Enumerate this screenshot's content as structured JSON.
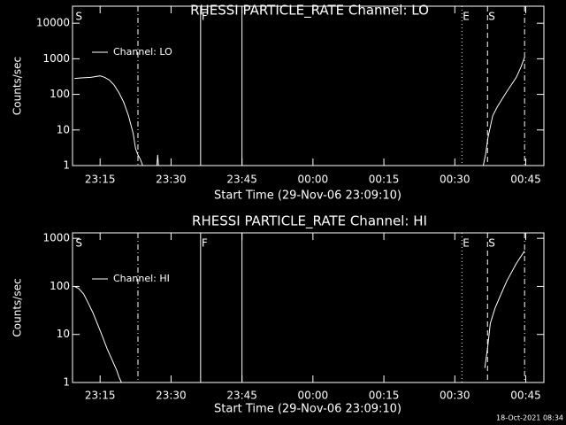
{
  "chart_data": [
    {
      "type": "line",
      "title": "RHESSI PARTICLE_RATE Channel: LO",
      "x_label": "Start Time (29-Nov-06 23:09:10)",
      "y_label": "Counts/sec",
      "log_y": true,
      "legend": "upper left",
      "xlim": [
        "23:09:10",
        "00:48:50"
      ],
      "xticks": [
        "23:15",
        "23:30",
        "23:45",
        "00:00",
        "00:15",
        "00:30",
        "00:45"
      ],
      "ylim": [
        1,
        30000
      ],
      "yticks": [
        1,
        10,
        100,
        1000,
        10000
      ],
      "markers": [
        {
          "x": "23:09:36",
          "label": "S",
          "style": "none"
        },
        {
          "x": "23:23:00",
          "style": "dashdot"
        },
        {
          "x": "23:36:15",
          "label": "F",
          "style": "solid"
        },
        {
          "x": "23:45:00",
          "style": "solid"
        },
        {
          "x": "00:31:30",
          "label": "E",
          "style": "dotted"
        },
        {
          "x": "00:36:55",
          "label": "S",
          "style": "dashed"
        },
        {
          "x": "00:44:45",
          "style": "dashdot"
        }
      ],
      "series": [
        {
          "name": "Channel: LO",
          "color": "#ffffff",
          "x": [
            "23:09:36",
            "23:11:00",
            "23:13:00",
            "23:15:00",
            "23:16:00",
            "23:17:00",
            "23:18:00",
            "23:19:00",
            "23:20:00",
            "23:21:00",
            "23:22:00",
            "23:22:30",
            "23:23:00",
            "23:23:30",
            "23:24:00",
            null,
            "23:27:00",
            "23:27:10",
            "23:27:20",
            null,
            "00:36:00",
            "00:36:30",
            "00:37:00",
            "00:38:00",
            "00:39:00",
            "00:41:00",
            "00:43:00",
            "00:44:00",
            "00:44:45"
          ],
          "values": [
            280,
            290,
            300,
            330,
            300,
            250,
            180,
            110,
            60,
            25,
            8,
            3,
            2,
            1.5,
            1,
            null,
            1,
            2,
            1,
            null,
            1,
            2,
            6,
            25,
            45,
            120,
            300,
            600,
            1100
          ]
        }
      ]
    },
    {
      "type": "line",
      "title": "RHESSI PARTICLE_RATE Channel: HI",
      "x_label": "Start Time (29-Nov-06 23:09:10)",
      "y_label": "Counts/sec",
      "log_y": true,
      "legend": "upper left",
      "xlim": [
        "23:09:10",
        "00:48:50"
      ],
      "xticks": [
        "23:15",
        "23:30",
        "23:45",
        "00:00",
        "00:15",
        "00:30",
        "00:45"
      ],
      "ylim": [
        1,
        1300
      ],
      "yticks": [
        1,
        10,
        100,
        1000
      ],
      "markers": [
        {
          "x": "23:09:36",
          "label": "S",
          "style": "none"
        },
        {
          "x": "23:23:00",
          "style": "dashdot"
        },
        {
          "x": "23:36:15",
          "label": "F",
          "style": "solid"
        },
        {
          "x": "23:45:00",
          "style": "solid"
        },
        {
          "x": "00:31:30",
          "label": "E",
          "style": "dotted"
        },
        {
          "x": "00:36:55",
          "label": "S",
          "style": "dashed"
        },
        {
          "x": "00:44:45",
          "style": "dashdot"
        }
      ],
      "series": [
        {
          "name": "Channel: HI",
          "color": "#ffffff",
          "x": [
            "23:09:36",
            "23:10:30",
            "23:11:30",
            "23:12:30",
            "23:13:30",
            "23:14:30",
            "23:15:30",
            "23:16:30",
            "23:17:30",
            "23:18:30",
            "23:19:00",
            "23:19:30",
            null,
            "00:36:20",
            "00:37:00",
            "00:37:30",
            "00:38:30",
            "00:39:30",
            "00:41:00",
            "00:43:00",
            "00:44:45"
          ],
          "values": [
            100,
            90,
            70,
            45,
            28,
            16,
            9,
            5,
            3,
            1.8,
            1.3,
            1,
            null,
            2,
            6,
            17,
            35,
            60,
            130,
            300,
            550
          ]
        }
      ]
    }
  ],
  "footer": "18-Oct-2021 08:34"
}
